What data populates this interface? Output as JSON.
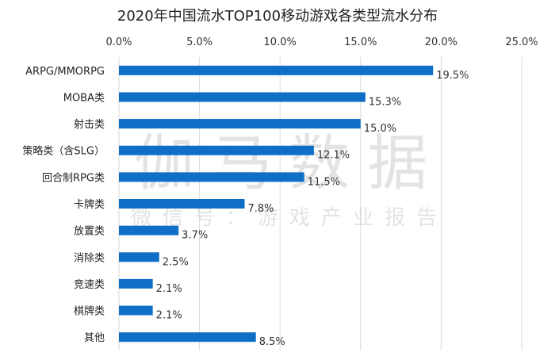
{
  "chart_data": {
    "type": "bar",
    "orientation": "horizontal",
    "title": "2020年中国流水TOP100移动游戏各类型流水分布",
    "xlabel": "",
    "ylabel": "",
    "xlim": [
      0,
      25
    ],
    "x_ticks": [
      "0.0%",
      "5.0%",
      "10.0%",
      "15.0%",
      "20.0%",
      "25.0%"
    ],
    "x_axis_position": "top",
    "grid": true,
    "categories": [
      "ARPG/MMORPG",
      "MOBA类",
      "射击类",
      "策略类（含SLG）",
      "回合制RPG类",
      "卡牌类",
      "放置类",
      "消除类",
      "竞速类",
      "棋牌类",
      "其他"
    ],
    "values": [
      19.5,
      15.3,
      15.0,
      12.1,
      11.5,
      7.8,
      3.7,
      2.5,
      2.1,
      2.1,
      8.5
    ],
    "data_labels": [
      "19.5%",
      "15.3%",
      "15.0%",
      "12.1%",
      "11.5%",
      "7.8%",
      "3.7%",
      "2.5%",
      "2.1%",
      "2.1%",
      "8.5%"
    ],
    "bar_color": "#0f6fc6",
    "grid_color": "#d9d9d9"
  },
  "watermark": {
    "line1": "伽马数据",
    "line2": "微信号：游戏产业报告"
  }
}
